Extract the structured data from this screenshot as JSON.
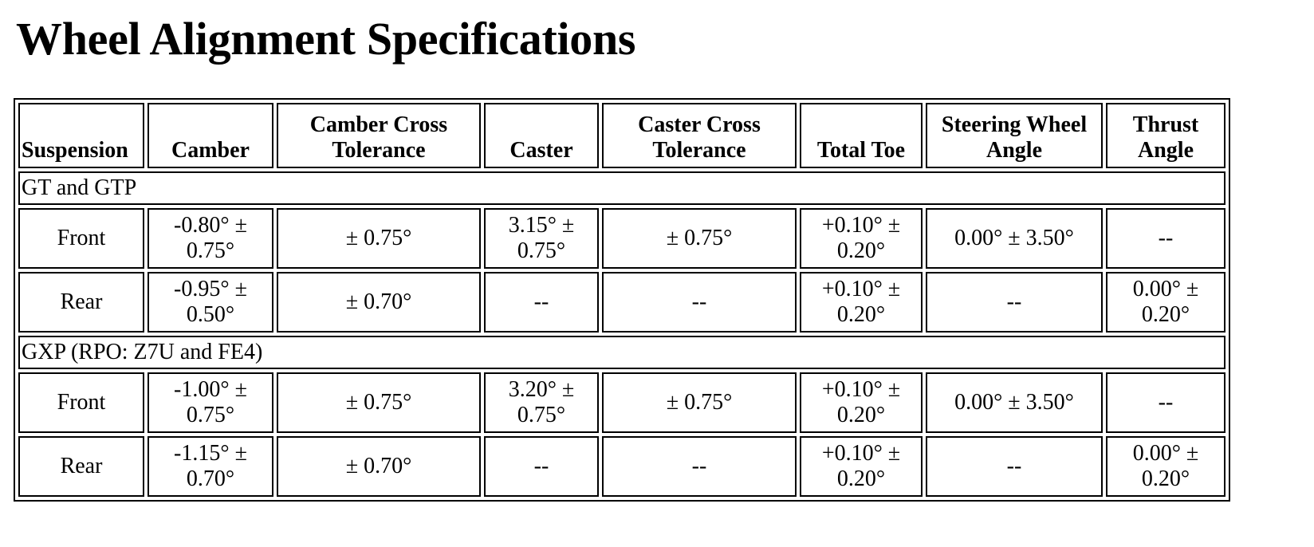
{
  "title": "Wheel Alignment Specifications",
  "columns": [
    "Suspension",
    "Camber",
    "Camber Cross Tolerance",
    "Caster",
    "Caster Cross Tolerance",
    "Total Toe",
    "Steering Wheel Angle",
    "Thrust Angle"
  ],
  "groups": [
    {
      "label": "GT and GTP",
      "rows": [
        [
          "Front",
          "-0.80° ± 0.75°",
          "± 0.75°",
          "3.15° ± 0.75°",
          "± 0.75°",
          "+0.10° ± 0.20°",
          "0.00° ± 3.50°",
          "--"
        ],
        [
          "Rear",
          "-0.95° ± 0.50°",
          "± 0.70°",
          "--",
          "--",
          "+0.10° ± 0.20°",
          "--",
          "0.00° ± 0.20°"
        ]
      ]
    },
    {
      "label": "GXP (RPO: Z7U and FE4)",
      "rows": [
        [
          "Front",
          "-1.00° ± 0.75°",
          "± 0.75°",
          "3.20° ± 0.75°",
          "± 0.75°",
          "+0.10° ± 0.20°",
          "0.00° ± 3.50°",
          "--"
        ],
        [
          "Rear",
          "-1.15° ± 0.70°",
          "± 0.70°",
          "--",
          "--",
          "+0.10° ± 0.20°",
          "--",
          "0.00° ± 0.20°"
        ]
      ]
    }
  ]
}
